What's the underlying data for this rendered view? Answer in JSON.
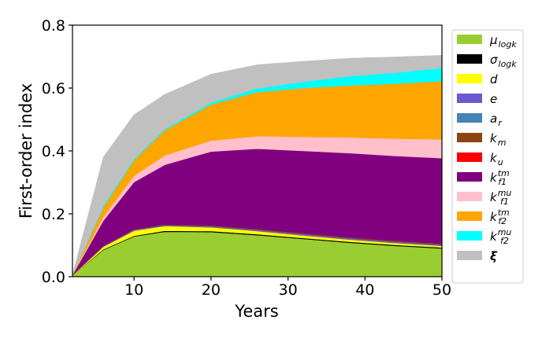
{
  "chart_data": {
    "type": "area",
    "stacked": true,
    "xlabel": "Years",
    "ylabel": "First-order index",
    "xlim": [
      2,
      50
    ],
    "ylim": [
      0,
      0.8
    ],
    "x_ticks": [
      10,
      20,
      30,
      40,
      50
    ],
    "y_ticks": [
      "0.0",
      "0.2",
      "0.4",
      "0.6",
      "0.8"
    ],
    "legend_position": "right, outside plot",
    "x": [
      2,
      6,
      10,
      14,
      20,
      26,
      32,
      38,
      44,
      50
    ],
    "series": [
      {
        "name": "μ",
        "sub": "logk",
        "sup": "",
        "color": "#9acd32",
        "values": [
          0.005,
          0.085,
          0.128,
          0.143,
          0.142,
          0.132,
          0.12,
          0.108,
          0.098,
          0.09
        ]
      },
      {
        "name": "σ",
        "sub": "logk",
        "sup": "",
        "color": "#000000",
        "values": [
          0.0,
          0.002,
          0.002,
          0.003,
          0.003,
          0.003,
          0.003,
          0.003,
          0.003,
          0.003
        ]
      },
      {
        "name": "d",
        "sub": "",
        "sup": "",
        "color": "#ffff00",
        "values": [
          0.0,
          0.008,
          0.016,
          0.015,
          0.012,
          0.01,
          0.008,
          0.007,
          0.006,
          0.005
        ]
      },
      {
        "name": "e",
        "sub": "",
        "sup": "",
        "color": "#6a5acd",
        "values": [
          0.0,
          0.001,
          0.002,
          0.002,
          0.002,
          0.003,
          0.003,
          0.003,
          0.003,
          0.003
        ]
      },
      {
        "name": "a",
        "sub": "r",
        "sup": "",
        "color": "#4682b4",
        "values": [
          0.0,
          0.001,
          0.001,
          0.001,
          0.001,
          0.001,
          0.001,
          0.001,
          0.001,
          0.001
        ]
      },
      {
        "name": "k",
        "sub": "m",
        "sup": "",
        "color": "#8b4513",
        "values": [
          0.0,
          0.001,
          0.002,
          0.002,
          0.003,
          0.003,
          0.003,
          0.003,
          0.003,
          0.003
        ]
      },
      {
        "name": "k",
        "sub": "u",
        "sup": "",
        "color": "#ff0000",
        "values": [
          0.0,
          0.0,
          0.0,
          0.0,
          0.0,
          0.0,
          0.0,
          0.0,
          0.0,
          0.0
        ]
      },
      {
        "name": "k",
        "sub": "f1",
        "sup": "tm",
        "color": "#800080",
        "values": [
          0.0,
          0.08,
          0.15,
          0.19,
          0.235,
          0.255,
          0.262,
          0.268,
          0.27,
          0.272
        ]
      },
      {
        "name": "k",
        "sub": "f1",
        "sup": "mu",
        "color": "#ffc0cb",
        "values": [
          0.0,
          0.012,
          0.02,
          0.03,
          0.035,
          0.04,
          0.045,
          0.05,
          0.055,
          0.06
        ]
      },
      {
        "name": "k",
        "sub": "f2",
        "sup": "tm",
        "color": "#ffa500",
        "values": [
          0.0,
          0.03,
          0.05,
          0.08,
          0.115,
          0.14,
          0.155,
          0.165,
          0.175,
          0.185
        ]
      },
      {
        "name": "k",
        "sub": "f2",
        "sup": "mu",
        "color": "#00ffff",
        "values": [
          0.0,
          0.005,
          0.004,
          0.004,
          0.006,
          0.012,
          0.02,
          0.03,
          0.035,
          0.042
        ]
      },
      {
        "name": "ξ",
        "sub": "",
        "sup": "",
        "color": "#c0c0c0",
        "values": [
          0.0,
          0.155,
          0.14,
          0.11,
          0.09,
          0.075,
          0.065,
          0.057,
          0.05,
          0.04
        ]
      }
    ]
  }
}
